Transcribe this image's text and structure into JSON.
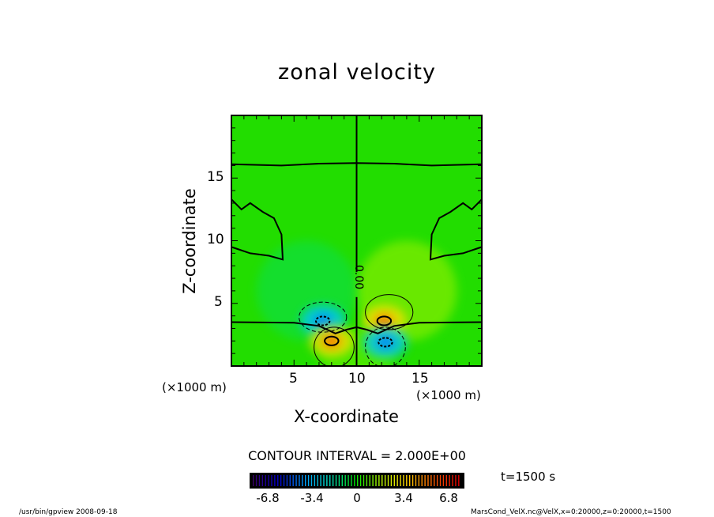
{
  "chart_data": {
    "type": "heatmap",
    "subtype": "filled contour with contour lines",
    "title": "zonal velocity",
    "xlabel": "X-coordinate",
    "ylabel": "Z-coordinate",
    "x_unit_label": "(×1000 m)",
    "y_unit_label": "(×1000 m)",
    "xlim": [
      0,
      20
    ],
    "ylim": [
      0,
      20
    ],
    "x_ticks": [
      5,
      10,
      15
    ],
    "y_ticks": [
      5,
      10,
      15
    ],
    "contour_interval_label": "CONTOUR INTERVAL = 2.000E+00",
    "contour_interval": 2.0,
    "contour_label": "0.00",
    "time_label": "t=1500 s",
    "colorbar": {
      "range": [
        -8.5,
        8.5
      ],
      "ticks": [
        "-6.8",
        "-3.4",
        "0",
        "3.4",
        "6.8"
      ],
      "colors": [
        "#3a006a",
        "#0000d0",
        "#00a0ff",
        "#00e0c0",
        "#00e000",
        "#c0ff00",
        "#ffd000",
        "#ff6000",
        "#e00000"
      ]
    },
    "extrema": [
      {
        "x": 7.3,
        "z": 3.6,
        "value": -5
      },
      {
        "x": 8.0,
        "z": 2.0,
        "value": 5.5
      },
      {
        "x": 12.2,
        "z": 3.6,
        "value": 5
      },
      {
        "x": 12.3,
        "z": 1.9,
        "value": -5.5
      }
    ],
    "background_value": 0,
    "grid": false
  },
  "footer": {
    "left": "/usr/bin/gpview   2008-09-18",
    "right": "MarsCond_VelX.nc@VelX,x=0:20000,z=0:20000,t=1500"
  }
}
